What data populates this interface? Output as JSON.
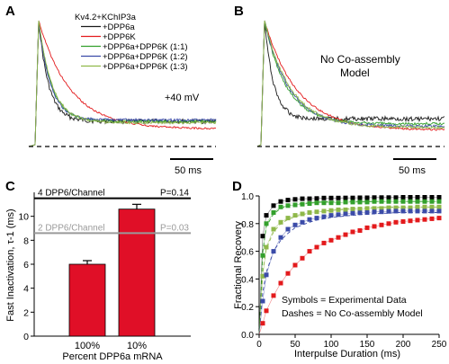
{
  "panel_labels": {
    "a": "A",
    "b": "B",
    "c": "C",
    "d": "D"
  },
  "panel_a": {
    "legend": [
      {
        "label": "Kv4.2+KChIP3a",
        "color": "#1a1a1a",
        "has_line": false
      },
      {
        "label": "+DPP6a",
        "color": "#1a1a1a",
        "has_line": true
      },
      {
        "label": "+DPP6K",
        "color": "#e31a1c",
        "has_line": true
      },
      {
        "label": "+DPP6a+DPP6K (1:1)",
        "color": "#33a02c",
        "has_line": true
      },
      {
        "label": "+DPP6a+DPP6K (1:2)",
        "color": "#3b4ba8",
        "has_line": true
      },
      {
        "label": "+DPP6a+DPP6K (1:3)",
        "color": "#8fb84a",
        "has_line": true
      }
    ],
    "voltage_label": "+40 mV",
    "scale_bar": "50 ms"
  },
  "panel_b": {
    "annotation_line1": "No Co-assembly",
    "annotation_line2": "Model",
    "scale_bar": "50 ms"
  },
  "chart_data": [
    {
      "type": "bar",
      "panel": "C",
      "categories": [
        "100%",
        "10%"
      ],
      "values": [
        6.0,
        10.6
      ],
      "errors": [
        0.3,
        0.4
      ],
      "ylim": [
        0,
        12
      ],
      "yticks": [
        "0",
        "2",
        "4",
        "6",
        "8",
        "10"
      ],
      "ylabel": "Fast Inactivation, τ-1 (ms)",
      "xlabel": "Percent DPP6a mRNA",
      "bar_color": "#e00f27",
      "reference_lines": [
        {
          "label": "4 DPP6/Channel",
          "p": "P=0.14",
          "value": 11.5,
          "color": "#000000"
        },
        {
          "label": "2 DPP6/Channel",
          "p": "P=0.03",
          "value": 8.6,
          "color": "#9a9a9a"
        }
      ]
    },
    {
      "type": "scatter",
      "panel": "D",
      "xlabel": "Interpulse Duration (ms)",
      "ylabel": "Fractional Recovery",
      "xlim": [
        0,
        250
      ],
      "ylim": [
        0,
        1.0
      ],
      "xticks": [
        "0",
        "50",
        "100",
        "150",
        "200",
        "250"
      ],
      "yticks": [
        "0.0",
        "0.2",
        "0.4",
        "0.6",
        "0.8",
        "1.0"
      ],
      "x": [
        5,
        10,
        20,
        30,
        40,
        50,
        60,
        70,
        80,
        90,
        100,
        110,
        120,
        130,
        140,
        150,
        160,
        170,
        180,
        190,
        200,
        210,
        220,
        230,
        240,
        250
      ],
      "series": [
        {
          "color": "#000000",
          "values": [
            0.71,
            0.86,
            0.93,
            0.96,
            0.97,
            0.975,
            0.98,
            0.98,
            0.982,
            0.985,
            0.985,
            0.985,
            0.986,
            0.986,
            0.987,
            0.987,
            0.988,
            0.988,
            0.988,
            0.988,
            0.99,
            0.99,
            0.99,
            0.99,
            0.99,
            0.99
          ]
        },
        {
          "color": "#33a02c",
          "values": [
            0.57,
            0.8,
            0.88,
            0.92,
            0.93,
            0.935,
            0.94,
            0.945,
            0.95,
            0.95,
            0.95,
            0.95,
            0.955,
            0.955,
            0.955,
            0.955,
            0.96,
            0.96,
            0.96,
            0.96,
            0.96,
            0.96,
            0.96,
            0.96,
            0.96,
            0.96
          ]
        },
        {
          "color": "#8fb84a",
          "values": [
            0.42,
            0.63,
            0.76,
            0.81,
            0.84,
            0.86,
            0.87,
            0.88,
            0.885,
            0.89,
            0.895,
            0.9,
            0.9,
            0.905,
            0.905,
            0.91,
            0.91,
            0.91,
            0.915,
            0.915,
            0.915,
            0.915,
            0.92,
            0.92,
            0.92,
            0.92
          ]
        },
        {
          "color": "#3b4ba8",
          "values": [
            0.24,
            0.43,
            0.6,
            0.7,
            0.76,
            0.79,
            0.81,
            0.83,
            0.84,
            0.85,
            0.86,
            0.865,
            0.87,
            0.875,
            0.878,
            0.88,
            0.885,
            0.885,
            0.888,
            0.89,
            0.89,
            0.89,
            0.89,
            0.89,
            0.89,
            0.89
          ]
        },
        {
          "color": "#e31a1c",
          "values": [
            0.08,
            0.17,
            0.28,
            0.37,
            0.44,
            0.5,
            0.55,
            0.6,
            0.63,
            0.66,
            0.68,
            0.7,
            0.72,
            0.74,
            0.75,
            0.77,
            0.78,
            0.79,
            0.8,
            0.81,
            0.815,
            0.82,
            0.825,
            0.83,
            0.835,
            0.84
          ]
        }
      ],
      "model_series": [
        {
          "color": "#33a02c",
          "values": [
            0.6,
            0.78,
            0.87,
            0.91,
            0.93,
            0.94,
            0.945,
            0.95,
            0.955,
            0.957,
            0.96,
            0.96,
            0.96,
            0.96,
            0.96,
            0.96,
            0.96,
            0.96,
            0.96,
            0.96,
            0.96,
            0.96,
            0.96,
            0.96,
            0.96,
            0.96
          ]
        },
        {
          "color": "#8fb84a",
          "values": [
            0.45,
            0.62,
            0.74,
            0.8,
            0.83,
            0.85,
            0.865,
            0.875,
            0.885,
            0.89,
            0.895,
            0.9,
            0.905,
            0.91,
            0.91,
            0.915,
            0.915,
            0.92,
            0.92,
            0.92,
            0.92,
            0.92,
            0.92,
            0.92,
            0.92,
            0.92
          ]
        },
        {
          "color": "#3b4ba8",
          "values": [
            0.3,
            0.45,
            0.6,
            0.68,
            0.73,
            0.77,
            0.79,
            0.81,
            0.825,
            0.835,
            0.845,
            0.85,
            0.855,
            0.86,
            0.865,
            0.87,
            0.87,
            0.875,
            0.875,
            0.88,
            0.88,
            0.88,
            0.88,
            0.88,
            0.88,
            0.88
          ]
        }
      ],
      "annotation_line1": "Symbols = Experimental Data",
      "annotation_line2": "Dashes = No Co-assembly Model"
    }
  ]
}
